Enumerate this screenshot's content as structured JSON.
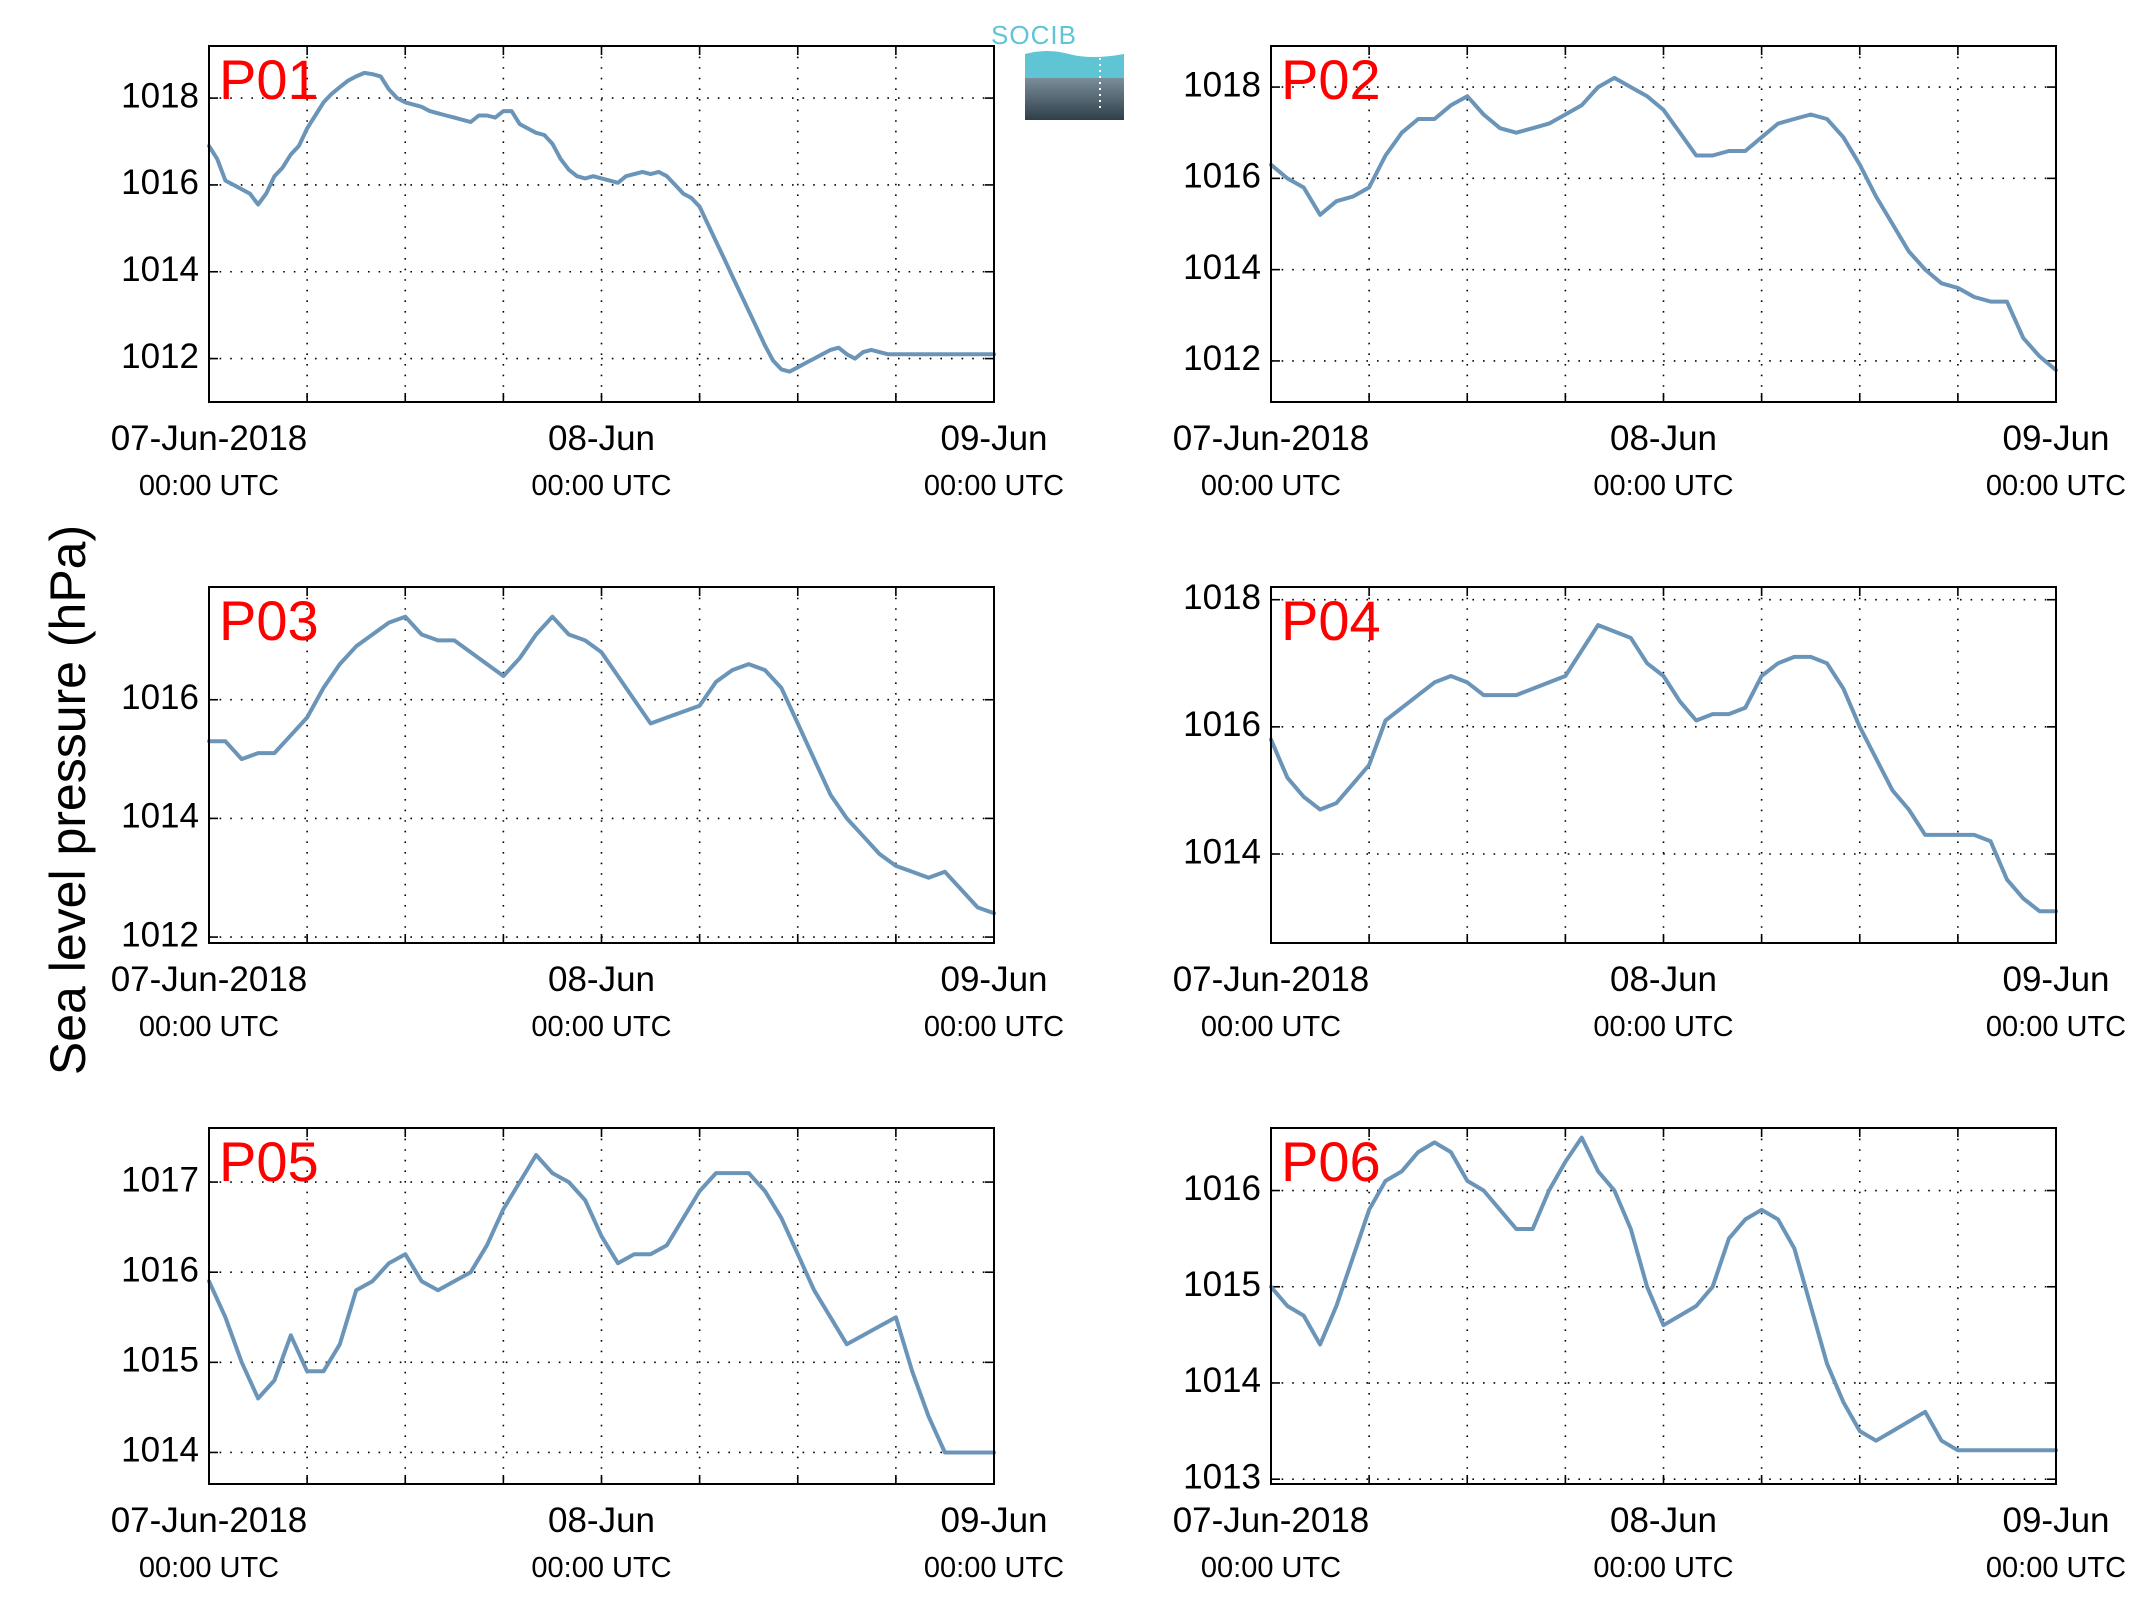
{
  "figure": {
    "ylabel": "Sea level pressure (hPa)",
    "logo_text": "SOCIB",
    "colors": {
      "line": "#6b95b8",
      "panel_label": "#ff0000",
      "grid": "#000000",
      "logo_accent": "#5fc4d4",
      "logo_dark": "#2f3f4a"
    }
  },
  "chart_data": [
    {
      "type": "line",
      "panel_label": "P01",
      "ylim": [
        1011,
        1019.2
      ],
      "yticks": [
        1012,
        1014,
        1016,
        1018
      ],
      "xlim": [
        0,
        48
      ],
      "xgrid": [
        0,
        6,
        12,
        18,
        24,
        30,
        36,
        42,
        48
      ],
      "xticks": [
        {
          "x": 0,
          "label": "07-Jun-2018",
          "sub": "00:00 UTC"
        },
        {
          "x": 24,
          "label": "08-Jun",
          "sub": "00:00 UTC"
        },
        {
          "x": 48,
          "label": "09-Jun",
          "sub": "00:00 UTC"
        }
      ],
      "grid": true,
      "series": [
        {
          "x": [
            0,
            0.5,
            1,
            1.5,
            2,
            2.5,
            3,
            3.5,
            4,
            4.5,
            5,
            5.5,
            6,
            6.5,
            7,
            7.5,
            8,
            8.5,
            9,
            9.5,
            10,
            10.5,
            11,
            11.5,
            12,
            12.5,
            13,
            13.5,
            14,
            14.5,
            15,
            15.5,
            16,
            16.5,
            17,
            17.5,
            18,
            18.5,
            19,
            19.5,
            20,
            20.5,
            21,
            21.5,
            22,
            22.5,
            23,
            23.5,
            24,
            24.5,
            25,
            25.5,
            26,
            26.5,
            27,
            27.5,
            28,
            28.5,
            29,
            29.5,
            30,
            30.5,
            31,
            31.5,
            32,
            32.5,
            33,
            33.5,
            34,
            34.5,
            35,
            35.5,
            36,
            36.5,
            37,
            37.5,
            38,
            38.5,
            39,
            39.5,
            40,
            40.5,
            41,
            41.5,
            42,
            42.5,
            43,
            43.5,
            44,
            44.5,
            45,
            45.5,
            46,
            46.5,
            47,
            47.5,
            48
          ],
          "y": [
            1016.9,
            1016.6,
            1016.1,
            1016,
            1015.9,
            1015.8,
            1015.55,
            1015.8,
            1016.2,
            1016.4,
            1016.7,
            1016.9,
            1017.3,
            1017.6,
            1017.9,
            1018.1,
            1018.25,
            1018.4,
            1018.5,
            1018.58,
            1018.55,
            1018.5,
            1018.2,
            1018.0,
            1017.9,
            1017.85,
            1017.8,
            1017.7,
            1017.65,
            1017.6,
            1017.55,
            1017.5,
            1017.45,
            1017.6,
            1017.6,
            1017.55,
            1017.7,
            1017.7,
            1017.4,
            1017.3,
            1017.2,
            1017.15,
            1016.95,
            1016.6,
            1016.35,
            1016.2,
            1016.15,
            1016.2,
            1016.15,
            1016.1,
            1016.05,
            1016.2,
            1016.25,
            1016.3,
            1016.25,
            1016.3,
            1016.2,
            1016.0,
            1015.8,
            1015.7,
            1015.5,
            1015.1,
            1014.7,
            1014.3,
            1013.9,
            1013.5,
            1013.1,
            1012.7,
            1012.3,
            1011.95,
            1011.75,
            1011.7,
            1011.8,
            1011.9,
            1012.0,
            1012.1,
            1012.2,
            1012.25,
            1012.1,
            1012.0,
            1012.15,
            1012.2,
            1012.15,
            1012.1,
            1012.1,
            1012.1,
            1012.1,
            1012.1,
            1012.1,
            1012.1,
            1012.1,
            1012.1,
            1012.1,
            1012.1,
            1012.1,
            1012.1,
            1012.1
          ]
        }
      ]
    },
    {
      "type": "line",
      "panel_label": "P02",
      "ylim": [
        1011.1,
        1018.9
      ],
      "yticks": [
        1012,
        1014,
        1016,
        1018
      ],
      "xlim": [
        0,
        48
      ],
      "xgrid": [
        0,
        6,
        12,
        18,
        24,
        30,
        36,
        42,
        48
      ],
      "xticks": [
        {
          "x": 0,
          "label": "07-Jun-2018",
          "sub": "00:00 UTC"
        },
        {
          "x": 24,
          "label": "08-Jun",
          "sub": "00:00 UTC"
        },
        {
          "x": 48,
          "label": "09-Jun",
          "sub": "00:00 UTC"
        }
      ],
      "grid": true,
      "series": [
        {
          "x": [
            0,
            1,
            2,
            3,
            4,
            5,
            6,
            7,
            8,
            9,
            10,
            11,
            12,
            13,
            14,
            15,
            16,
            17,
            18,
            19,
            20,
            21,
            22,
            23,
            24,
            25,
            26,
            27,
            28,
            29,
            30,
            31,
            32,
            33,
            34,
            35,
            36,
            37,
            38,
            39,
            40,
            41,
            42,
            43,
            44,
            45,
            46,
            47,
            48
          ],
          "y": [
            1016.3,
            1016.0,
            1015.8,
            1015.2,
            1015.5,
            1015.6,
            1015.8,
            1016.5,
            1017.0,
            1017.3,
            1017.3,
            1017.6,
            1017.8,
            1017.4,
            1017.1,
            1017.0,
            1017.1,
            1017.2,
            1017.4,
            1017.6,
            1018.0,
            1018.2,
            1018.0,
            1017.8,
            1017.5,
            1017.0,
            1016.5,
            1016.5,
            1016.6,
            1016.6,
            1016.9,
            1017.2,
            1017.3,
            1017.4,
            1017.3,
            1016.9,
            1016.3,
            1015.6,
            1015.0,
            1014.4,
            1014.0,
            1013.7,
            1013.6,
            1013.4,
            1013.3,
            1013.3,
            1012.5,
            1012.1,
            1011.8
          ]
        }
      ]
    },
    {
      "type": "line",
      "panel_label": "P03",
      "ylim": [
        1011.9,
        1017.9
      ],
      "yticks": [
        1012,
        1014,
        1016
      ],
      "xlim": [
        0,
        48
      ],
      "xgrid": [
        0,
        6,
        12,
        18,
        24,
        30,
        36,
        42,
        48
      ],
      "xticks": [
        {
          "x": 0,
          "label": "07-Jun-2018",
          "sub": "00:00 UTC"
        },
        {
          "x": 24,
          "label": "08-Jun",
          "sub": "00:00 UTC"
        },
        {
          "x": 48,
          "label": "09-Jun",
          "sub": "00:00 UTC"
        }
      ],
      "grid": true,
      "series": [
        {
          "x": [
            0,
            1,
            2,
            3,
            4,
            5,
            6,
            7,
            8,
            9,
            10,
            11,
            12,
            13,
            14,
            15,
            16,
            17,
            18,
            19,
            20,
            21,
            22,
            23,
            24,
            25,
            26,
            27,
            28,
            29,
            30,
            31,
            32,
            33,
            34,
            35,
            36,
            37,
            38,
            39,
            40,
            41,
            42,
            43,
            44,
            45,
            46,
            47,
            48
          ],
          "y": [
            1015.3,
            1015.3,
            1015.0,
            1015.1,
            1015.1,
            1015.4,
            1015.7,
            1016.2,
            1016.6,
            1016.9,
            1017.1,
            1017.3,
            1017.4,
            1017.1,
            1017.0,
            1017.0,
            1016.8,
            1016.6,
            1016.4,
            1016.7,
            1017.1,
            1017.4,
            1017.1,
            1017.0,
            1016.8,
            1016.4,
            1016.0,
            1015.6,
            1015.7,
            1015.8,
            1015.9,
            1016.3,
            1016.5,
            1016.6,
            1016.5,
            1016.2,
            1015.6,
            1015.0,
            1014.4,
            1014.0,
            1013.7,
            1013.4,
            1013.2,
            1013.1,
            1013.0,
            1013.1,
            1012.8,
            1012.5,
            1012.4
          ]
        }
      ]
    },
    {
      "type": "line",
      "panel_label": "P04",
      "ylim": [
        1012.6,
        1018.2
      ],
      "yticks": [
        1014,
        1016,
        1018
      ],
      "xlim": [
        0,
        48
      ],
      "xgrid": [
        0,
        6,
        12,
        18,
        24,
        30,
        36,
        42,
        48
      ],
      "xticks": [
        {
          "x": 0,
          "label": "07-Jun-2018",
          "sub": "00:00 UTC"
        },
        {
          "x": 24,
          "label": "08-Jun",
          "sub": "00:00 UTC"
        },
        {
          "x": 48,
          "label": "09-Jun",
          "sub": "00:00 UTC"
        }
      ],
      "grid": true,
      "series": [
        {
          "x": [
            0,
            1,
            2,
            3,
            4,
            5,
            6,
            7,
            8,
            9,
            10,
            11,
            12,
            13,
            14,
            15,
            16,
            17,
            18,
            19,
            20,
            21,
            22,
            23,
            24,
            25,
            26,
            27,
            28,
            29,
            30,
            31,
            32,
            33,
            34,
            35,
            36,
            37,
            38,
            39,
            40,
            41,
            42,
            43,
            44,
            45,
            46,
            47,
            48
          ],
          "y": [
            1015.8,
            1015.2,
            1014.9,
            1014.7,
            1014.8,
            1015.1,
            1015.4,
            1016.1,
            1016.3,
            1016.5,
            1016.7,
            1016.8,
            1016.7,
            1016.5,
            1016.5,
            1016.5,
            1016.6,
            1016.7,
            1016.8,
            1017.2,
            1017.6,
            1017.5,
            1017.4,
            1017.0,
            1016.8,
            1016.4,
            1016.1,
            1016.2,
            1016.2,
            1016.3,
            1016.8,
            1017.0,
            1017.1,
            1017.1,
            1017.0,
            1016.6,
            1016.0,
            1015.5,
            1015.0,
            1014.7,
            1014.3,
            1014.3,
            1014.3,
            1014.3,
            1014.2,
            1013.6,
            1013.3,
            1013.1,
            1013.1
          ]
        }
      ]
    },
    {
      "type": "line",
      "panel_label": "P05",
      "ylim": [
        1013.65,
        1017.6
      ],
      "yticks": [
        1014,
        1015,
        1016,
        1017
      ],
      "xlim": [
        0,
        48
      ],
      "xgrid": [
        0,
        6,
        12,
        18,
        24,
        30,
        36,
        42,
        48
      ],
      "xticks": [
        {
          "x": 0,
          "label": "07-Jun-2018",
          "sub": "00:00 UTC"
        },
        {
          "x": 24,
          "label": "08-Jun",
          "sub": "00:00 UTC"
        },
        {
          "x": 48,
          "label": "09-Jun",
          "sub": "00:00 UTC"
        }
      ],
      "grid": true,
      "series": [
        {
          "x": [
            0,
            1,
            2,
            3,
            4,
            5,
            6,
            7,
            8,
            9,
            10,
            11,
            12,
            13,
            14,
            15,
            16,
            17,
            18,
            19,
            20,
            21,
            22,
            23,
            24,
            25,
            26,
            27,
            28,
            29,
            30,
            31,
            32,
            33,
            34,
            35,
            36,
            37,
            38,
            39,
            40,
            41,
            42,
            43,
            44,
            45,
            46,
            47,
            48
          ],
          "y": [
            1015.9,
            1015.5,
            1015.0,
            1014.6,
            1014.8,
            1015.3,
            1014.9,
            1014.9,
            1015.2,
            1015.8,
            1015.9,
            1016.1,
            1016.2,
            1015.9,
            1015.8,
            1015.9,
            1016.0,
            1016.3,
            1016.7,
            1017.0,
            1017.3,
            1017.1,
            1017.0,
            1016.8,
            1016.4,
            1016.1,
            1016.2,
            1016.2,
            1016.3,
            1016.6,
            1016.9,
            1017.1,
            1017.1,
            1017.1,
            1016.9,
            1016.6,
            1016.2,
            1015.8,
            1015.5,
            1015.2,
            1015.3,
            1015.4,
            1015.5,
            1014.9,
            1014.4,
            1014.0,
            1014.0,
            1014.0,
            1014.0
          ]
        }
      ]
    },
    {
      "type": "line",
      "panel_label": "P06",
      "ylim": [
        1012.95,
        1016.65
      ],
      "yticks": [
        1013,
        1014,
        1015,
        1016
      ],
      "xlim": [
        0,
        48
      ],
      "xgrid": [
        0,
        6,
        12,
        18,
        24,
        30,
        36,
        42,
        48
      ],
      "xticks": [
        {
          "x": 0,
          "label": "07-Jun-2018",
          "sub": "00:00 UTC"
        },
        {
          "x": 24,
          "label": "08-Jun",
          "sub": "00:00 UTC"
        },
        {
          "x": 48,
          "label": "09-Jun",
          "sub": "00:00 UTC"
        }
      ],
      "grid": true,
      "series": [
        {
          "x": [
            0,
            1,
            2,
            3,
            4,
            5,
            6,
            7,
            8,
            9,
            10,
            11,
            12,
            13,
            14,
            15,
            16,
            17,
            18,
            19,
            20,
            21,
            22,
            23,
            24,
            25,
            26,
            27,
            28,
            29,
            30,
            31,
            32,
            33,
            34,
            35,
            36,
            37,
            38,
            39,
            40,
            41,
            42,
            43,
            44,
            45,
            46,
            47,
            48
          ],
          "y": [
            1015.0,
            1014.8,
            1014.7,
            1014.4,
            1014.8,
            1015.3,
            1015.8,
            1016.1,
            1016.2,
            1016.4,
            1016.5,
            1016.4,
            1016.1,
            1016.0,
            1015.8,
            1015.6,
            1015.6,
            1016.0,
            1016.3,
            1016.55,
            1016.2,
            1016.0,
            1015.6,
            1015.0,
            1014.6,
            1014.7,
            1014.8,
            1015.0,
            1015.5,
            1015.7,
            1015.8,
            1015.7,
            1015.4,
            1014.8,
            1014.2,
            1013.8,
            1013.5,
            1013.4,
            1013.5,
            1013.6,
            1013.7,
            1013.4,
            1013.3,
            1013.3,
            1013.3,
            1013.3,
            1013.3,
            1013.3,
            1013.3
          ]
        }
      ]
    }
  ]
}
